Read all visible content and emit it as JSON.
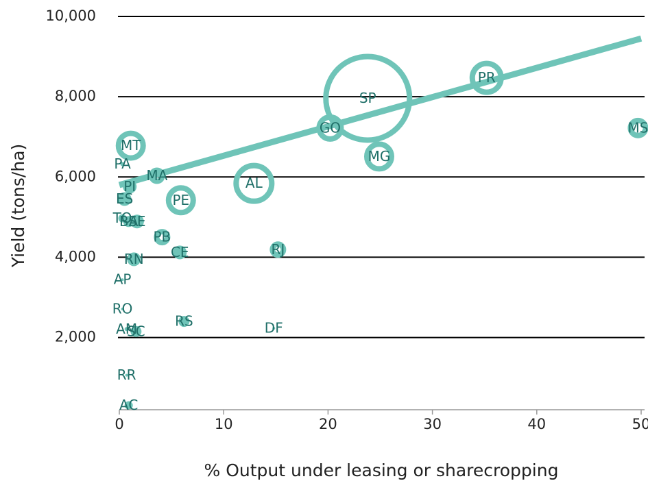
{
  "chart_data": {
    "type": "bubble",
    "x_label": "% Output under leasing or sharecropping",
    "y_label": "Yield (tons/ha)",
    "categories": [
      "MT",
      "PA",
      "MA",
      "PI",
      "ES",
      "PE",
      "AL",
      "TO",
      "BA",
      "SE",
      "PB",
      "CE",
      "RJ",
      "RN",
      "AP",
      "RO",
      "RS",
      "AM",
      "SC",
      "DF",
      "RR",
      "AC",
      "GO",
      "SP",
      "MG",
      "PR",
      "MS"
    ],
    "x": [
      1.1,
      0.3,
      3.6,
      1.0,
      0.5,
      5.9,
      12.9,
      0.3,
      0.9,
      1.7,
      4.1,
      5.8,
      15.2,
      1.4,
      0.3,
      0.3,
      6.2,
      0.7,
      1.6,
      14.8,
      0.7,
      0.9,
      20.2,
      23.8,
      24.9,
      35.2,
      49.7
    ],
    "values": [
      6780,
      6320,
      6030,
      5760,
      5450,
      5420,
      5840,
      4970,
      4890,
      4890,
      4500,
      4120,
      4190,
      3950,
      3440,
      2710,
      2400,
      2210,
      2150,
      2230,
      1060,
      310,
      7220,
      7960,
      6510,
      8470,
      7220
    ],
    "sizes": [
      484,
      9,
      144,
      100,
      100,
      484,
      900,
      36,
      64,
      100,
      144,
      100,
      144,
      100,
      4,
      4,
      64,
      9,
      64,
      4,
      4,
      36,
      400,
      4225,
      484,
      625,
      225
    ],
    "color": "#6fc4b8",
    "label_color": "#1f6f68",
    "trendline": {
      "x": [
        0,
        50
      ],
      "values": [
        5800,
        9450
      ]
    },
    "xlim": [
      0,
      50
    ],
    "ylim": [
      200,
      10000
    ],
    "xticks": [
      0,
      10,
      20,
      30,
      40,
      50
    ],
    "yticks": [
      {
        "value": 2000,
        "label": "2,000"
      },
      {
        "value": 4000,
        "label": "4,000"
      },
      {
        "value": 6000,
        "label": "6,000"
      },
      {
        "value": 8000,
        "label": "8,000"
      },
      {
        "value": 10000,
        "label": "10,000"
      }
    ],
    "grid": true
  }
}
